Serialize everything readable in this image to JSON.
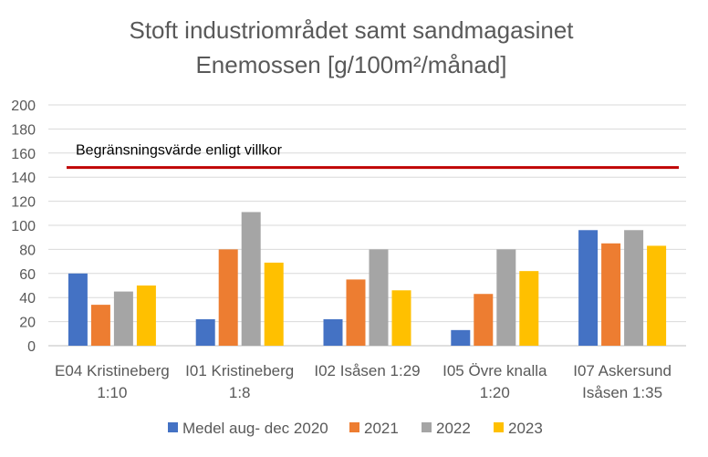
{
  "chart_data": {
    "type": "bar",
    "title_line1": "Stoft industriområdet samt sandmagasinet",
    "title_line2": "Enemossen [g/100m²/månad]",
    "xlabel": "",
    "ylabel": "",
    "ylim": [
      0,
      200
    ],
    "yticks": [
      "0",
      "20",
      "40",
      "60",
      "80",
      "100",
      "120",
      "140",
      "160",
      "180",
      "200"
    ],
    "grid": true,
    "legend_position": "bottom",
    "categories": [
      [
        "E04 Kristineberg",
        "1:10"
      ],
      [
        "I01 Kristineberg",
        "1:8"
      ],
      [
        "I02 Isåsen 1:29",
        ""
      ],
      [
        "I05 Övre knalla",
        "1:20"
      ],
      [
        "I07 Askersund",
        "Isåsen 1:35"
      ]
    ],
    "series": [
      {
        "name": "Medel aug- dec 2020",
        "color": "#4472C4",
        "values": [
          60,
          22,
          22,
          13,
          96
        ]
      },
      {
        "name": "2021",
        "color": "#ED7D31",
        "values": [
          34,
          80,
          55,
          43,
          85
        ]
      },
      {
        "name": "2022",
        "color": "#A5A5A5",
        "values": [
          45,
          111,
          80,
          80,
          96
        ]
      },
      {
        "name": "2023",
        "color": "#FFC000",
        "values": [
          50,
          69,
          46,
          62,
          83
        ]
      }
    ],
    "limit_line": {
      "label": "Begränsningsvärde enligt villkor",
      "value": 148,
      "color": "#C00000"
    }
  }
}
